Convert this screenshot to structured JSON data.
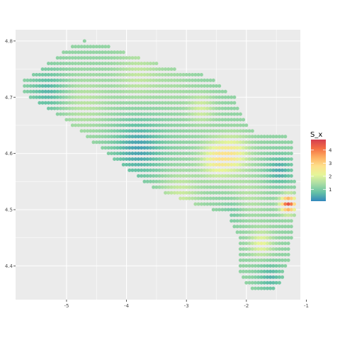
{
  "chart_data": {
    "type": "scatter",
    "xlim": [
      -5.85,
      -1.1
    ],
    "ylim": [
      4.34,
      4.82
    ],
    "x_ticks": [
      -5,
      -4,
      -3,
      -2,
      -1
    ],
    "y_ticks": [
      4.4,
      4.5,
      4.6,
      4.7,
      4.8
    ],
    "x_tick_labels": [
      "-5",
      "-4",
      "-3",
      "-2",
      "-1"
    ],
    "y_tick_labels": [
      "4.4",
      "4.5",
      "4.6",
      "4.7",
      "4.8"
    ],
    "grid": true,
    "legend": {
      "title": "S_x",
      "placement": "right",
      "min": 0.1,
      "max": 4.8,
      "ticks": [
        1,
        2,
        3,
        4
      ],
      "tick_labels": [
        "1",
        "2",
        "3",
        "4"
      ]
    },
    "colors": {
      "panel_bg": "#ebebeb",
      "grid": "#ffffff",
      "scale": [
        "#3288bd",
        "#66c2a5",
        "#abdda4",
        "#e6f598",
        "#fee08b",
        "#fdae61",
        "#f46d43",
        "#d53e4f"
      ]
    },
    "grid_spacing": {
      "dx": 0.05,
      "dy": 0.01
    },
    "region_outline": [
      [
        -5.72,
        4.73
      ],
      [
        -5.3,
        4.76
      ],
      [
        -5.0,
        4.785
      ],
      [
        -4.7,
        4.8
      ],
      [
        -4.4,
        4.795
      ],
      [
        -4.1,
        4.783
      ],
      [
        -3.8,
        4.77
      ],
      [
        -3.5,
        4.76
      ],
      [
        -3.2,
        4.75
      ],
      [
        -2.95,
        4.745
      ],
      [
        -2.75,
        4.74
      ],
      [
        -2.55,
        4.732
      ],
      [
        -2.38,
        4.712
      ],
      [
        -2.2,
        4.7
      ],
      [
        -2.05,
        4.66
      ],
      [
        -1.88,
        4.64
      ],
      [
        -1.65,
        4.635
      ],
      [
        -1.42,
        4.632
      ],
      [
        -1.2,
        4.627
      ],
      [
        -1.25,
        4.61
      ],
      [
        -1.2,
        4.55
      ],
      [
        -1.17,
        4.5
      ],
      [
        -1.25,
        4.45
      ],
      [
        -1.3,
        4.41
      ],
      [
        -1.4,
        4.38
      ],
      [
        -1.5,
        4.36
      ],
      [
        -1.75,
        4.355
      ],
      [
        -1.95,
        4.36
      ],
      [
        -2.1,
        4.38
      ],
      [
        -2.15,
        4.45
      ],
      [
        -2.3,
        4.49
      ],
      [
        -2.75,
        4.505
      ],
      [
        -3.25,
        4.525
      ],
      [
        -3.6,
        4.54
      ],
      [
        -3.85,
        4.56
      ],
      [
        -4.15,
        4.585
      ],
      [
        -4.5,
        4.615
      ],
      [
        -4.8,
        4.64
      ],
      [
        -5.1,
        4.665
      ],
      [
        -5.5,
        4.69
      ],
      [
        -5.72,
        4.71
      ]
    ],
    "field_hotspots": [
      {
        "x": -3.8,
        "y": 4.74,
        "value": 1.7,
        "r": 0.35
      },
      {
        "x": -4.7,
        "y": 4.69,
        "value": 1.6,
        "r": 0.4
      },
      {
        "x": -3.2,
        "y": 4.72,
        "value": 1.4,
        "r": 0.3
      },
      {
        "x": -2.5,
        "y": 4.59,
        "value": 2.4,
        "r": 0.25
      },
      {
        "x": -2.2,
        "y": 4.6,
        "value": 2.3,
        "r": 0.25
      },
      {
        "x": -2.0,
        "y": 4.52,
        "value": 1.6,
        "r": 0.3
      },
      {
        "x": -1.75,
        "y": 4.44,
        "value": 2.2,
        "r": 0.18
      },
      {
        "x": -3.1,
        "y": 4.53,
        "value": 1.8,
        "r": 0.3
      },
      {
        "x": -2.75,
        "y": 4.68,
        "value": 1.9,
        "r": 0.2
      },
      {
        "x": -1.3,
        "y": 4.51,
        "value": 4.5,
        "r": 0.12
      }
    ],
    "field_coldspots": [
      {
        "x": -3.8,
        "y": 4.61,
        "value": 0.4,
        "r": 0.4
      },
      {
        "x": -5.3,
        "y": 4.71,
        "value": 0.6,
        "r": 0.3
      },
      {
        "x": -1.45,
        "y": 4.57,
        "value": 0.5,
        "r": 0.22
      },
      {
        "x": -2.2,
        "y": 4.5,
        "value": 0.8,
        "r": 0.2
      },
      {
        "x": -1.6,
        "y": 4.38,
        "value": 0.6,
        "r": 0.2
      }
    ]
  }
}
